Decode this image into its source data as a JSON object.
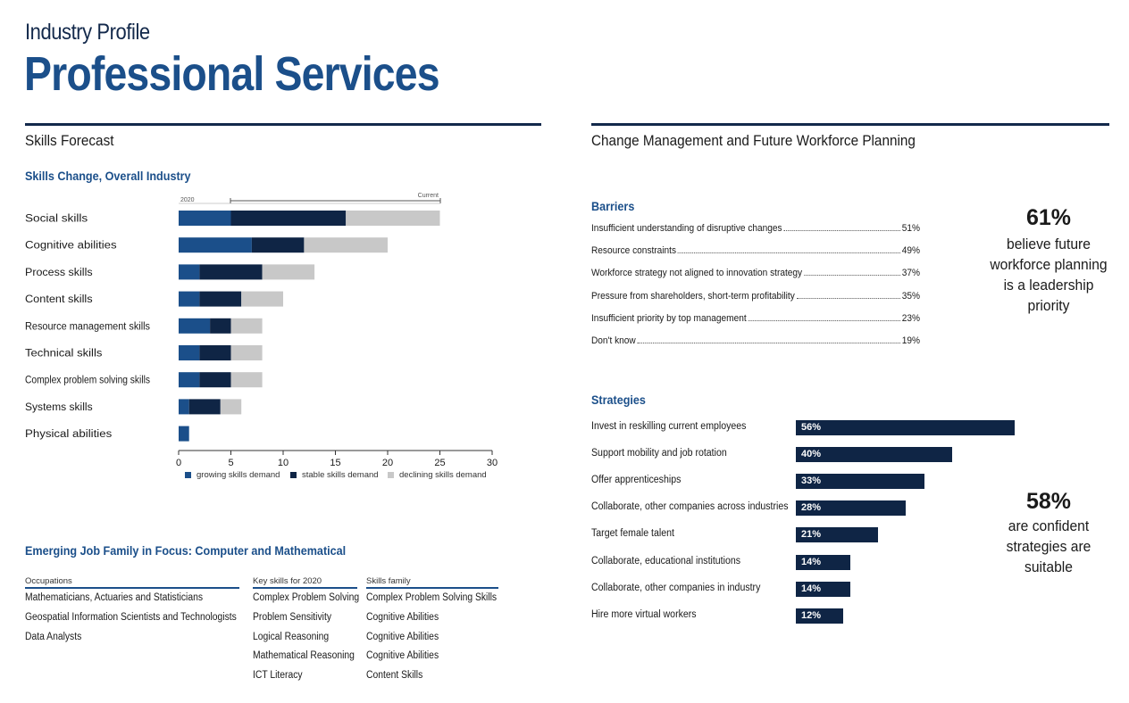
{
  "header": {
    "kicker": "Industry Profile",
    "title": "Professional Services"
  },
  "skills_forecast": {
    "section_title": "Skills Forecast",
    "chart_title": "Skills Change, Overall Industry",
    "range_start_label": "2020",
    "range_end_label": "Current"
  },
  "change_mgmt": {
    "section_title": "Change Management and Future Workforce Planning",
    "barriers_title": "Barriers",
    "barriers": [
      {
        "label": "Insufficient understanding of disruptive changes",
        "value": "51%"
      },
      {
        "label": "Resource constraints",
        "value": "49%"
      },
      {
        "label": "Workforce strategy not aligned to innovation strategy",
        "value": "37%"
      },
      {
        "label": "Pressure from shareholders, short-term profitability",
        "value": "35%"
      },
      {
        "label": "Insufficient priority by top management",
        "value": "23%"
      },
      {
        "label": "Don't know",
        "value": "19%"
      }
    ],
    "stat1": {
      "value": "61%",
      "text": "believe future workforce planning is a leadership priority"
    },
    "strategies_title": "Strategies",
    "stat2": {
      "value": "58%",
      "text": "are confident strategies are suitable"
    }
  },
  "job_family": {
    "title": "Emerging Job Family in Focus: Computer and Mathematical",
    "col_occupations": "Occupations",
    "col_key_skills": "Key skills for 2020",
    "col_skills_family": "Skills family",
    "occupations": [
      "Mathematicians, Actuaries and Statisticians",
      "Geospatial Information Scientists and Technologists",
      "Data Analysts"
    ],
    "key_skills": [
      "Complex Problem Solving",
      "Problem Sensitivity",
      "Logical Reasoning",
      "Mathematical Reasoning",
      "ICT Literacy"
    ],
    "skills_family": [
      "Complex Problem Solving Skills",
      "Cognitive Abilities",
      "Cognitive Abilities",
      "Cognitive Abilities",
      "Content Skills"
    ]
  },
  "chart_data": [
    {
      "type": "bar",
      "orientation": "horizontal",
      "stacked": true,
      "title": "Skills Change, Overall Industry",
      "categories": [
        "Social skills",
        "Cognitive abilities",
        "Process skills",
        "Content skills",
        "Resource management skills",
        "Technical skills",
        "Complex problem solving skills",
        "Systems skills",
        "Physical abilities"
      ],
      "series": [
        {
          "name": "growing skills demand",
          "color": "#1b4f8a",
          "values": [
            5,
            7,
            2,
            2,
            3,
            2,
            2,
            1,
            1
          ]
        },
        {
          "name": "stable skills demand",
          "color": "#0f2545",
          "values": [
            11,
            5,
            6,
            4,
            2,
            3,
            3,
            3,
            0
          ]
        },
        {
          "name": "declining skills demand",
          "color": "#c8c8c8",
          "values": [
            9,
            8,
            5,
            4,
            3,
            3,
            3,
            2,
            0
          ]
        }
      ],
      "xlim": [
        0,
        30
      ],
      "xticks": [
        0,
        5,
        10,
        15,
        20,
        25,
        30
      ],
      "legend_position": "bottom"
    },
    {
      "type": "bar",
      "orientation": "horizontal",
      "title": "Strategies",
      "categories": [
        "Invest in reskilling current employees",
        "Support mobility and job rotation",
        "Offer apprenticeships",
        "Collaborate, other companies across industries",
        "Target female talent",
        "Collaborate, educational institutions",
        "Collaborate, other companies in industry",
        "Hire more virtual workers"
      ],
      "values": [
        56,
        40,
        33,
        28,
        21,
        14,
        14,
        12
      ],
      "value_labels": [
        "56%",
        "40%",
        "33%",
        "28%",
        "21%",
        "14%",
        "14%",
        "12%"
      ],
      "color": "#0f2545"
    }
  ]
}
